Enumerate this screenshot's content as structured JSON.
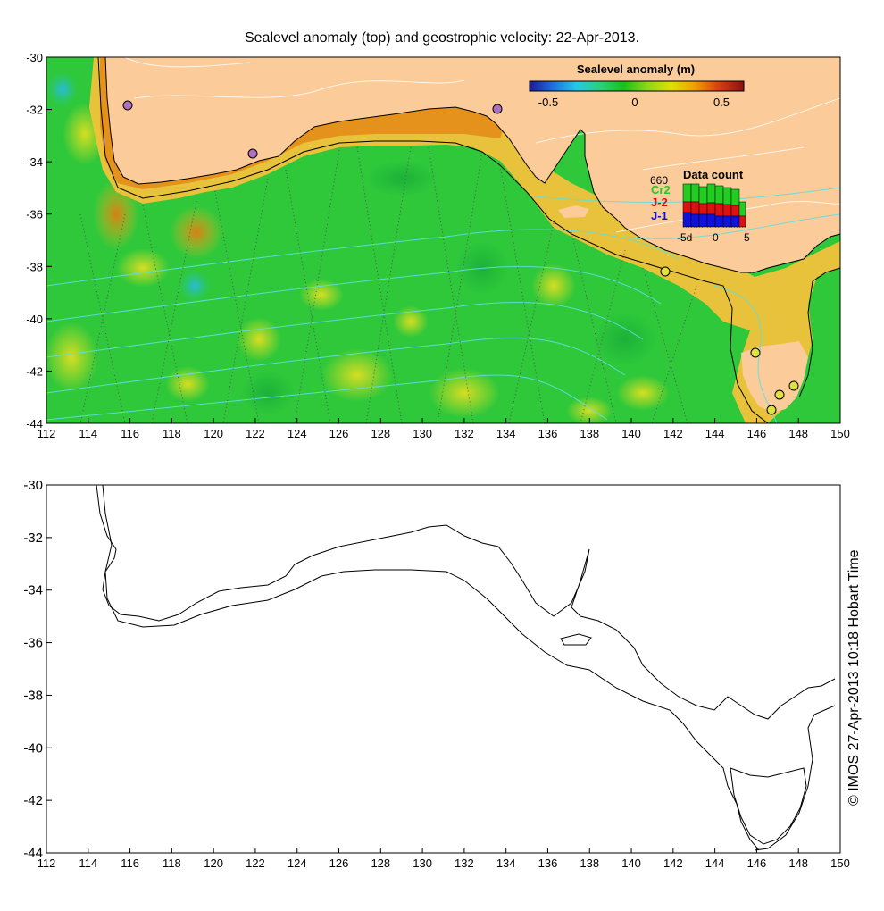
{
  "title": "Sealevel anomaly (top) and geostrophic velocity: 22-Apr-2013.",
  "credit": "© IMOS 27-Apr-2013 10:18 Hobart Time",
  "colorbar": {
    "title": "Sealevel anomaly (m)",
    "ticks": [
      "-0.5",
      "0",
      "0.5"
    ],
    "colors": [
      "#1a1a9a",
      "#1e6fe0",
      "#25c8e8",
      "#2bd07a",
      "#18c018",
      "#8cd818",
      "#e0e000",
      "#f0a000",
      "#d84010",
      "#8b1010"
    ]
  },
  "data_count_inset": {
    "title": "Data count",
    "max_label": "660",
    "legend": [
      {
        "label": "Cr2",
        "color": "#22cc22"
      },
      {
        "label": "J-2",
        "color": "#dd1111"
      },
      {
        "label": "J-1",
        "color": "#1111dd"
      }
    ],
    "x_ticks": [
      "-5d",
      "0",
      "5"
    ]
  },
  "map_axes": {
    "x_ticks": [
      "112",
      "114",
      "116",
      "118",
      "120",
      "122",
      "124",
      "126",
      "128",
      "130",
      "132",
      "134",
      "136",
      "138",
      "140",
      "142",
      "144",
      "146",
      "148",
      "150"
    ],
    "y_ticks": [
      "-30",
      "-32",
      "-34",
      "-36",
      "-38",
      "-40",
      "-42",
      "-44"
    ],
    "lon_range": [
      112,
      150
    ],
    "lat_range": [
      -44,
      -30
    ]
  },
  "colors": {
    "land": "#fbcb99",
    "ocean_base": "#2ec83a",
    "shelf": "#f3c23a",
    "coast_line": "#000000"
  }
}
